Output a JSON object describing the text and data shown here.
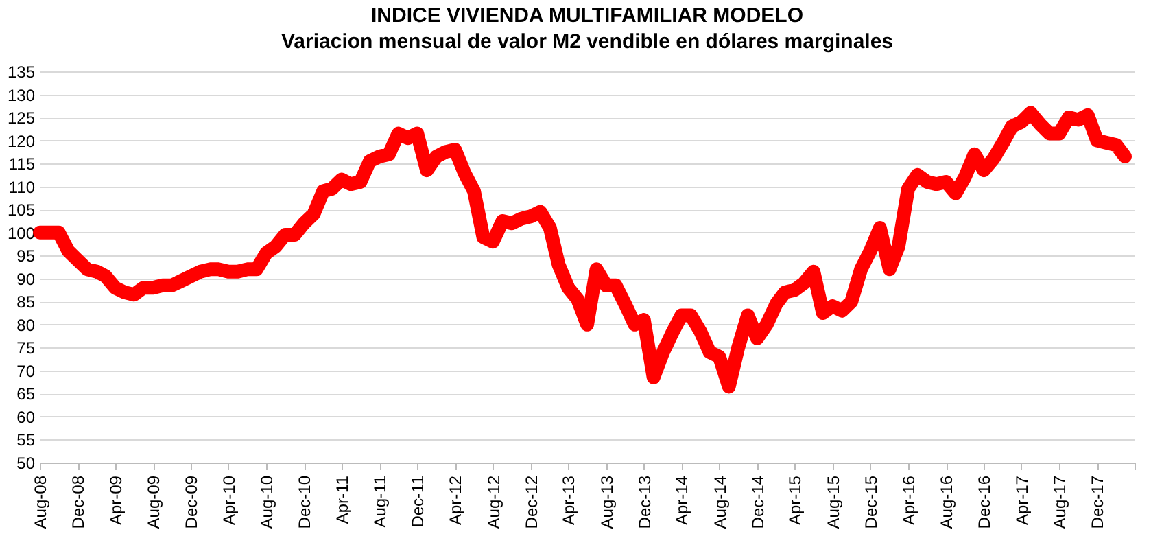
{
  "chart_data": {
    "type": "line",
    "title": "INDICE VIVIENDA MULTIFAMILIAR MODELO",
    "subtitle": "Variacion mensual de valor M2 vendible en dólares  marginales",
    "x": [
      "2008-08",
      "2008-09",
      "2008-10",
      "2008-11",
      "2008-12",
      "2009-01",
      "2009-02",
      "2009-03",
      "2009-04",
      "2009-05",
      "2009-06",
      "2009-07",
      "2009-08",
      "2009-09",
      "2009-10",
      "2009-11",
      "2009-12",
      "2010-01",
      "2010-02",
      "2010-03",
      "2010-04",
      "2010-05",
      "2010-06",
      "2010-07",
      "2010-08",
      "2010-09",
      "2010-10",
      "2010-11",
      "2010-12",
      "2011-01",
      "2011-02",
      "2011-03",
      "2011-04",
      "2011-05",
      "2011-06",
      "2011-07",
      "2011-08",
      "2011-09",
      "2011-10",
      "2011-11",
      "2011-12",
      "2012-01",
      "2012-02",
      "2012-03",
      "2012-04",
      "2012-05",
      "2012-06",
      "2012-07",
      "2012-08",
      "2012-09",
      "2012-10",
      "2012-11",
      "2012-12",
      "2013-01",
      "2013-02",
      "2013-03",
      "2013-04",
      "2013-05",
      "2013-06",
      "2013-07",
      "2013-08",
      "2013-09",
      "2013-10",
      "2013-11",
      "2013-12",
      "2014-01",
      "2014-02",
      "2014-03",
      "2014-04",
      "2014-05",
      "2014-06",
      "2014-07",
      "2014-08",
      "2014-09",
      "2014-10",
      "2014-11",
      "2014-12",
      "2015-01",
      "2015-02",
      "2015-03",
      "2015-04",
      "2015-05",
      "2015-06",
      "2015-07",
      "2015-08",
      "2015-09",
      "2015-10",
      "2015-11",
      "2015-12",
      "2016-01",
      "2016-02",
      "2016-03",
      "2016-04",
      "2016-05",
      "2016-06",
      "2016-07",
      "2016-08",
      "2016-09",
      "2016-10",
      "2016-11",
      "2016-12",
      "2017-01",
      "2017-02",
      "2017-03",
      "2017-04",
      "2017-05",
      "2017-06",
      "2017-07",
      "2017-08",
      "2017-09",
      "2017-10",
      "2017-11",
      "2017-12",
      "2018-01",
      "2018-02",
      "2018-03"
    ],
    "series": [
      {
        "color": "#ff0000",
        "values": [
          100,
          100,
          100,
          96,
          94,
          92,
          91.5,
          90.5,
          88,
          87,
          86.5,
          88,
          88,
          88.5,
          88.5,
          89.5,
          90.5,
          91.5,
          92,
          92,
          91.5,
          91.5,
          92,
          92,
          95.5,
          97,
          99.5,
          99.5,
          102,
          104,
          109,
          109.5,
          111.5,
          110.5,
          111,
          115.5,
          116.5,
          117,
          121.5,
          120.5,
          121.5,
          113.5,
          116.5,
          117.5,
          118,
          113,
          109,
          99,
          98,
          102.5,
          102,
          103,
          103.5,
          104.5,
          101,
          93,
          88,
          85.5,
          80,
          92,
          88.5,
          88.5,
          84.5,
          80,
          81,
          68.5,
          74,
          78,
          82,
          82,
          78.5,
          74,
          73,
          66.5,
          75,
          82,
          77,
          80,
          84.5,
          87,
          87.5,
          89,
          91.5,
          82.5,
          84,
          83,
          85,
          92,
          96,
          101,
          92,
          97,
          109.5,
          112.5,
          111,
          110.5,
          111,
          108.5,
          112,
          117,
          113.5,
          116,
          119.5,
          123,
          124,
          126,
          123.5,
          121.5,
          121.5,
          125,
          124.5,
          125.5,
          120,
          119.5,
          119,
          116.5
        ]
      }
    ],
    "xlim": [
      "2008-08",
      "2018-04"
    ],
    "xticks": [
      {
        "value": "2008-08",
        "label": "Aug-08"
      },
      {
        "value": "2008-12",
        "label": "Dec-08"
      },
      {
        "value": "2009-04",
        "label": "Apr-09"
      },
      {
        "value": "2009-08",
        "label": "Aug-09"
      },
      {
        "value": "2009-12",
        "label": "Dec-09"
      },
      {
        "value": "2010-04",
        "label": "Apr-10"
      },
      {
        "value": "2010-08",
        "label": "Aug-10"
      },
      {
        "value": "2010-12",
        "label": "Dec-10"
      },
      {
        "value": "2011-04",
        "label": "Apr-11"
      },
      {
        "value": "2011-08",
        "label": "Aug-11"
      },
      {
        "value": "2011-12",
        "label": "Dec-11"
      },
      {
        "value": "2012-04",
        "label": "Apr-12"
      },
      {
        "value": "2012-08",
        "label": "Aug-12"
      },
      {
        "value": "2012-12",
        "label": "Dec-12"
      },
      {
        "value": "2013-04",
        "label": "Apr-13"
      },
      {
        "value": "2013-08",
        "label": "Aug-13"
      },
      {
        "value": "2013-12",
        "label": "Dec-13"
      },
      {
        "value": "2014-04",
        "label": "Apr-14"
      },
      {
        "value": "2014-08",
        "label": "Aug-14"
      },
      {
        "value": "2014-12",
        "label": "Dec-14"
      },
      {
        "value": "2015-04",
        "label": "Apr-15"
      },
      {
        "value": "2015-08",
        "label": "Aug-15"
      },
      {
        "value": "2015-12",
        "label": "Dec-15"
      },
      {
        "value": "2016-04",
        "label": "Apr-16"
      },
      {
        "value": "2016-08",
        "label": "Aug-16"
      },
      {
        "value": "2016-12",
        "label": "Dec-16"
      },
      {
        "value": "2017-04",
        "label": "Apr-17"
      },
      {
        "value": "2017-08",
        "label": "Aug-17"
      },
      {
        "value": "2017-12",
        "label": "Dec-17"
      },
      {
        "value": "2018-04",
        "label": null
      }
    ],
    "ylim": [
      50,
      135
    ],
    "yticks": [
      50,
      55,
      60,
      65,
      70,
      75,
      80,
      85,
      90,
      95,
      100,
      105,
      110,
      115,
      120,
      125,
      130,
      135
    ],
    "grid": "y",
    "line_style": "solid"
  }
}
